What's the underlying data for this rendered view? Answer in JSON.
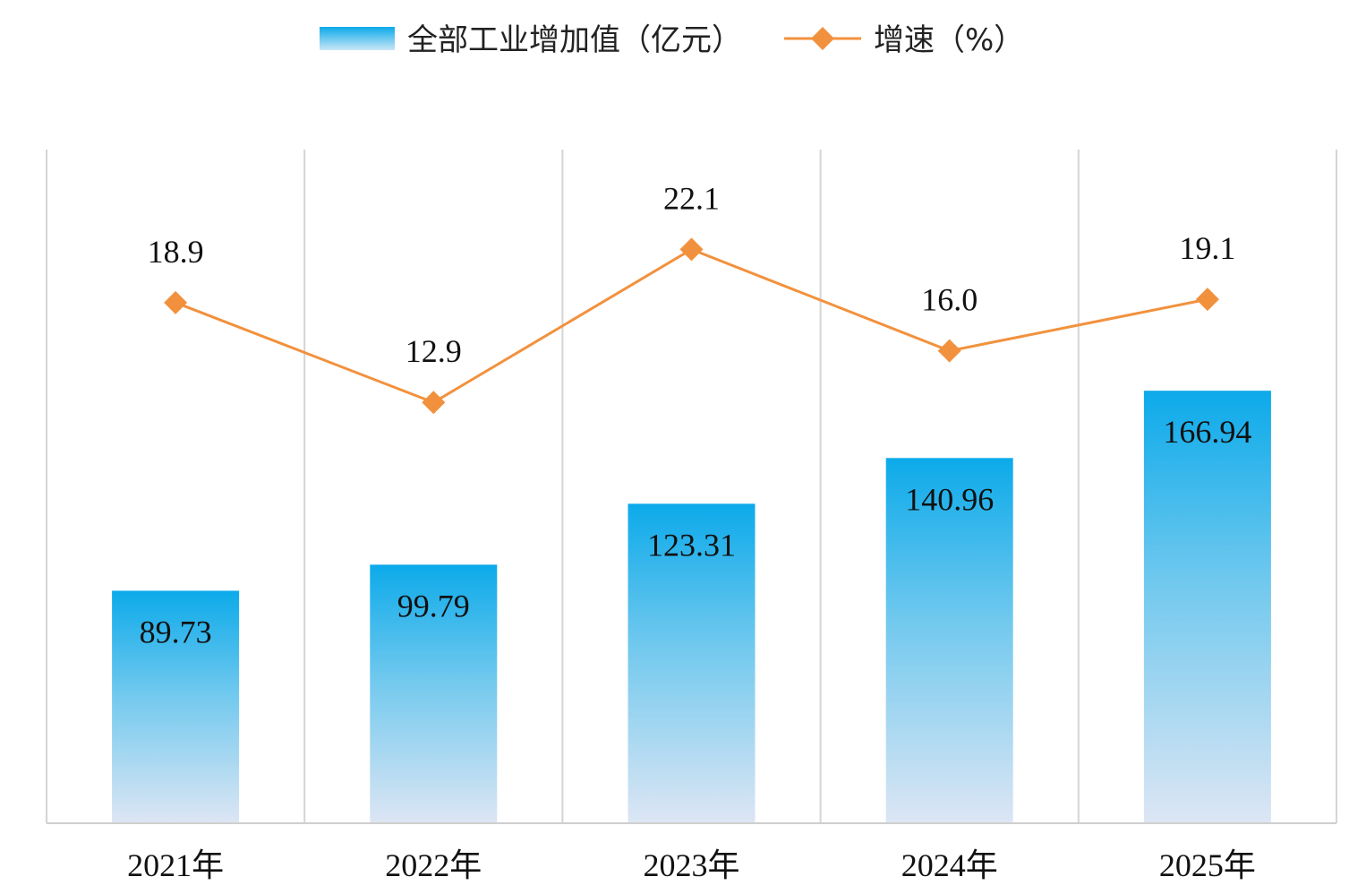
{
  "chart_data": {
    "type": "bar",
    "categories": [
      "2021年",
      "2022年",
      "2023年",
      "2024年",
      "2025年"
    ],
    "series": [
      {
        "name": "全部工业增加值（亿元）",
        "kind": "bar",
        "values": [
          89.73,
          99.79,
          123.31,
          140.96,
          166.94
        ],
        "labels": [
          "89.73",
          "99.79",
          "123.31",
          "140.96",
          "166.94"
        ],
        "color": "#12ACE8"
      },
      {
        "name": "增速（%）",
        "kind": "line",
        "values": [
          18.9,
          12.9,
          22.1,
          16.0,
          19.1
        ],
        "labels": [
          "18.9",
          "12.9",
          "22.1",
          "16.0",
          "19.1"
        ],
        "color": "#F2913D"
      }
    ],
    "title": "",
    "xlabel": "",
    "ylabel": "",
    "ylim_bar": [
      0,
      260
    ],
    "ylim_line": [
      -12.4,
      28.1
    ],
    "grid": "vertical",
    "legend_position": "top-center"
  }
}
